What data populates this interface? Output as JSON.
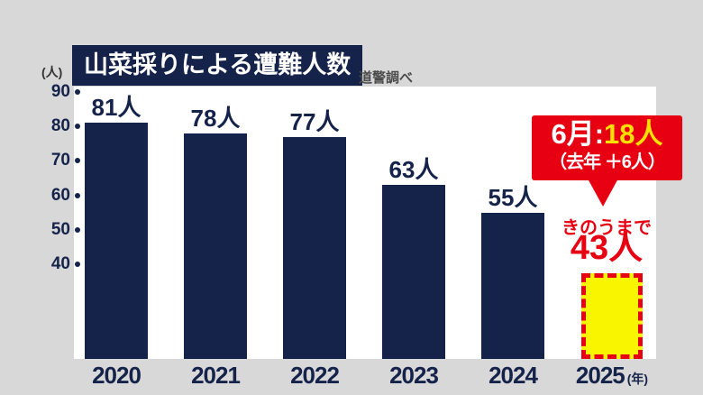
{
  "header": {
    "title": "山菜採りによる遭難人数",
    "source": "道警調べ"
  },
  "axes": {
    "unit_label": "(人)",
    "year_suffix": "(年)"
  },
  "callout": {
    "month_label": "6月:",
    "month_value": "18人",
    "delta": "（去年 ＋6人）"
  },
  "as_of": {
    "caption": "きのうまで",
    "value": "43人"
  },
  "colors": {
    "navy": "#15234a",
    "red": "#e60012",
    "yellow_fill": "#f9f500",
    "callout_value_yellow": "#ffe100",
    "background": "#d8d8d8",
    "plot_background": "#ffffff",
    "source_gray": "#4a4a4a"
  },
  "chart_data": {
    "type": "bar",
    "title": "山菜採りによる遭難人数",
    "source": "道警調べ",
    "categories": [
      "2020",
      "2021",
      "2022",
      "2023",
      "2024",
      "2025"
    ],
    "values": [
      81,
      78,
      77,
      63,
      55,
      43
    ],
    "value_labels": [
      "81人",
      "78人",
      "77人",
      "63人",
      "55人",
      "43人"
    ],
    "highlight_category": "2025",
    "highlight_style": "yellow fill, red dashed outline (partial year, count as of yesterday)",
    "yticks": [
      90,
      80,
      70,
      60,
      50,
      40
    ],
    "ylim": [
      40,
      90
    ],
    "ylabel": "(人)",
    "xlabel_suffix": "(年)",
    "grid": false,
    "legend": false,
    "annotations": [
      {
        "target": "2025",
        "text": "6月:18人（去年 ＋6人）"
      },
      {
        "target": "2025",
        "text": "きのうまで 43人"
      }
    ]
  }
}
